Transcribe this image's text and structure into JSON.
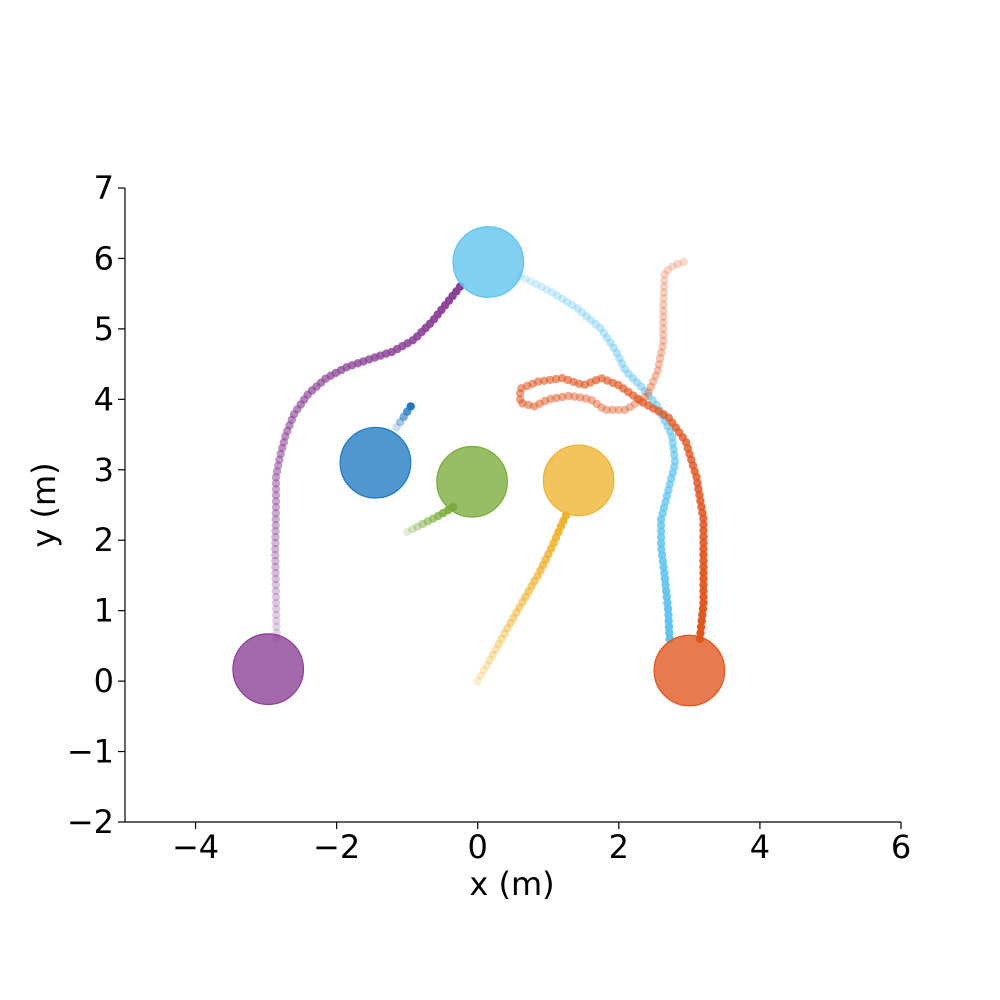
{
  "chart_data": {
    "type": "scatter",
    "title": "",
    "xlabel": "x (m)",
    "ylabel": "y (m)",
    "xlim": [
      -5,
      6
    ],
    "ylim": [
      -2,
      7
    ],
    "x_ticks": [
      -4,
      -2,
      0,
      2,
      4,
      6
    ],
    "x_tick_labels": [
      "−4",
      "−2",
      "0",
      "2",
      "4",
      "6"
    ],
    "y_ticks": [
      -2,
      -1,
      0,
      1,
      2,
      3,
      4,
      5,
      6,
      7
    ],
    "y_tick_labels": [
      "−2",
      "−1",
      "0",
      "1",
      "2",
      "3",
      "4",
      "5",
      "6",
      "7"
    ],
    "grid": false,
    "legend": "none",
    "agent_radius_m": 0.5,
    "series": [
      {
        "color": "#8B3F96",
        "agent_position": [
          -2.97,
          0.17
        ],
        "trajectory": [
          [
            -2.85,
            0.6
          ],
          [
            -2.86,
            1.2
          ],
          [
            -2.87,
            1.8
          ],
          [
            -2.86,
            2.4
          ],
          [
            -2.86,
            2.9
          ],
          [
            -2.8,
            3.2
          ],
          [
            -2.72,
            3.5
          ],
          [
            -2.6,
            3.8
          ],
          [
            -2.4,
            4.08
          ],
          [
            -2.15,
            4.3
          ],
          [
            -1.85,
            4.46
          ],
          [
            -1.5,
            4.58
          ],
          [
            -1.2,
            4.68
          ],
          [
            -0.9,
            4.85
          ],
          [
            -0.65,
            5.1
          ],
          [
            -0.45,
            5.35
          ],
          [
            -0.25,
            5.6
          ]
        ]
      },
      {
        "color": "#1F78C1",
        "agent_position": [
          -1.45,
          3.1
        ],
        "trajectory": [
          [
            -1.15,
            3.6
          ],
          [
            -1.05,
            3.75
          ],
          [
            -0.95,
            3.9
          ]
        ]
      },
      {
        "color": "#7AAA3A",
        "agent_position": [
          -0.08,
          2.83
        ],
        "trajectory": [
          [
            -1.0,
            2.12
          ],
          [
            -0.8,
            2.22
          ],
          [
            -0.55,
            2.35
          ],
          [
            -0.35,
            2.47
          ]
        ]
      },
      {
        "color": "#EFB22E",
        "agent_position": [
          1.43,
          2.85
        ],
        "trajectory": [
          [
            0.0,
            0.0
          ],
          [
            0.2,
            0.35
          ],
          [
            0.42,
            0.75
          ],
          [
            0.65,
            1.15
          ],
          [
            0.88,
            1.55
          ],
          [
            1.05,
            1.9
          ],
          [
            1.18,
            2.2
          ],
          [
            1.25,
            2.35
          ]
        ]
      },
      {
        "color": "#5EC3EE",
        "agent_position": [
          0.15,
          5.95
        ],
        "trajectory": [
          [
            0.6,
            5.75
          ],
          [
            1.0,
            5.55
          ],
          [
            1.4,
            5.3
          ],
          [
            1.75,
            5.0
          ],
          [
            1.95,
            4.7
          ],
          [
            2.1,
            4.4
          ],
          [
            2.3,
            4.2
          ],
          [
            2.55,
            3.9
          ],
          [
            2.75,
            3.5
          ],
          [
            2.8,
            3.1
          ],
          [
            2.7,
            2.7
          ],
          [
            2.6,
            2.3
          ],
          [
            2.6,
            1.9
          ],
          [
            2.65,
            1.5
          ],
          [
            2.7,
            1.0
          ],
          [
            2.72,
            0.6
          ]
        ]
      },
      {
        "color": "#E0541E",
        "agent_position": [
          3.0,
          0.15
        ],
        "trajectory": [
          [
            2.92,
            5.95
          ],
          [
            2.78,
            5.9
          ],
          [
            2.65,
            5.8
          ],
          [
            2.63,
            5.3
          ],
          [
            2.63,
            4.8
          ],
          [
            2.55,
            4.4
          ],
          [
            2.4,
            4.05
          ],
          [
            2.1,
            3.85
          ],
          [
            1.8,
            3.85
          ],
          [
            1.6,
            4.0
          ],
          [
            1.3,
            4.05
          ],
          [
            1.0,
            4.0
          ],
          [
            0.8,
            3.9
          ],
          [
            0.6,
            3.95
          ],
          [
            0.6,
            4.15
          ],
          [
            0.85,
            4.25
          ],
          [
            1.2,
            4.3
          ],
          [
            1.5,
            4.2
          ],
          [
            1.75,
            4.3
          ],
          [
            2.0,
            4.2
          ],
          [
            2.35,
            3.95
          ],
          [
            2.7,
            3.75
          ],
          [
            2.95,
            3.4
          ],
          [
            3.1,
            2.9
          ],
          [
            3.2,
            2.3
          ],
          [
            3.2,
            1.7
          ],
          [
            3.2,
            1.1
          ],
          [
            3.15,
            0.6
          ]
        ]
      }
    ]
  }
}
